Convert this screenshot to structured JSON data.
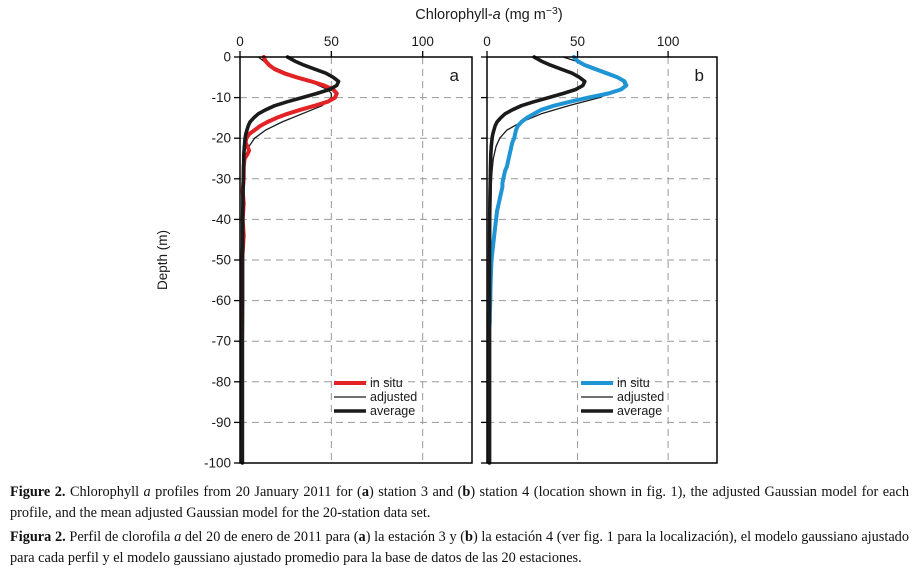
{
  "figure": {
    "title_segments": [
      {
        "t": "Chlorophyll-"
      },
      {
        "t": "a",
        "i": true
      },
      {
        "t": " (mg m"
      },
      {
        "t": "−3",
        "sup": true
      },
      {
        "t": ")"
      }
    ],
    "ylabel": "Depth (m)",
    "colors": {
      "in_situ_a": "#e32226",
      "in_situ_b": "#2095d5",
      "black": "#1a1a1a",
      "grid": "#999999"
    }
  },
  "chart_data": [
    {
      "type": "line",
      "panel_label": "a",
      "xlabel": "Chlorophyll-a (mg m-3)",
      "ylabel": "Depth (m)",
      "xlim": [
        0,
        127
      ],
      "ylim": [
        -100,
        0
      ],
      "xticks": [
        0,
        50,
        100
      ],
      "yticks": [
        0,
        -10,
        -20,
        -30,
        -40,
        -50,
        -60,
        -70,
        -80,
        -90,
        -100
      ],
      "grid": true,
      "legend_position": "lower-center",
      "legend": [
        "in situ",
        "adjusted",
        "average"
      ],
      "series": [
        {
          "name": "adjusted",
          "style": "thin",
          "color": "#1a1a1a",
          "width": 1.3,
          "depth": [
            0,
            -2,
            -4,
            -6,
            -8,
            -9,
            -10,
            -12,
            -14,
            -16,
            -18,
            -20,
            -22,
            -25,
            -28,
            -30,
            -40,
            -60,
            -80,
            -100
          ],
          "value": [
            10,
            16,
            26,
            38,
            48,
            50,
            50,
            45,
            34,
            23,
            14,
            8,
            5,
            3,
            2,
            1.8,
            1.5,
            1.5,
            1.5,
            1.5
          ]
        },
        {
          "name": "in situ",
          "style": "thick",
          "color": "#e32226",
          "width": 4,
          "depth": [
            0,
            -1,
            -2,
            -3,
            -4,
            -5,
            -6,
            -7,
            -8,
            -9,
            -10,
            -11,
            -12,
            -13,
            -14,
            -15,
            -16,
            -17,
            -18,
            -19,
            -20,
            -21,
            -22,
            -23,
            -24,
            -25,
            -27,
            -30,
            -33,
            -36,
            -40,
            -44,
            -48,
            -50,
            -52,
            -55,
            -58,
            -60,
            -63,
            -66,
            -70,
            -73,
            -76,
            -80,
            -83,
            -86,
            -90,
            -92,
            -94
          ],
          "value": [
            13,
            14,
            16,
            19,
            24,
            31,
            39,
            46,
            51,
            53,
            52,
            48,
            41,
            33,
            26,
            20,
            15,
            11,
            8,
            5,
            3.5,
            3,
            4,
            5,
            4,
            2.5,
            2,
            2,
            1.5,
            2,
            1.5,
            2,
            1.5,
            1,
            0.8,
            1,
            0.8,
            1,
            0.8,
            1,
            0.8,
            1,
            0.8,
            1,
            0.8,
            1,
            1,
            0.9,
            0.8
          ]
        },
        {
          "name": "average",
          "style": "thick",
          "color": "#1a1a1a",
          "width": 3.6,
          "depth": [
            0,
            -1,
            -2,
            -3,
            -4,
            -5,
            -6,
            -7,
            -8,
            -9,
            -10,
            -11,
            -12,
            -13,
            -14,
            -15,
            -16,
            -17,
            -18,
            -19,
            -20,
            -22,
            -24,
            -26,
            -28,
            -30,
            -35,
            -40,
            -50,
            -60,
            -70,
            -80,
            -90,
            -100
          ],
          "value": [
            26,
            30,
            35,
            41,
            47,
            51,
            54,
            53,
            49,
            42,
            34,
            26,
            19,
            14,
            10,
            7.5,
            5.5,
            4.5,
            3.8,
            3.2,
            2.8,
            2.4,
            2.1,
            2,
            1.9,
            1.8,
            1.6,
            1.5,
            1.4,
            1.4,
            1.3,
            1.3,
            1.3,
            1.3
          ]
        }
      ]
    },
    {
      "type": "line",
      "panel_label": "b",
      "xlabel": "Chlorophyll-a (mg m-3)",
      "ylabel": "Depth (m)",
      "xlim": [
        0,
        127
      ],
      "ylim": [
        -100,
        0
      ],
      "xticks": [
        0,
        50,
        100
      ],
      "yticks": [
        0,
        -10,
        -20,
        -30,
        -40,
        -50,
        -60,
        -70,
        -80,
        -90,
        -100
      ],
      "grid": true,
      "legend_position": "lower-center",
      "legend": [
        "in situ",
        "adjusted",
        "average"
      ],
      "series": [
        {
          "name": "adjusted",
          "style": "thin",
          "color": "#1a1a1a",
          "width": 1.3,
          "depth": [
            0,
            -2,
            -4,
            -6,
            -7,
            -8,
            -10,
            -12,
            -14,
            -16,
            -18,
            -20,
            -22,
            -25,
            -28,
            -30,
            -40,
            -60,
            -80,
            -100
          ],
          "value": [
            42,
            56,
            68,
            75,
            76,
            73,
            62,
            45,
            30,
            19,
            11,
            7,
            5,
            3.5,
            2.8,
            2.5,
            2,
            2,
            2,
            2
          ]
        },
        {
          "name": "in situ",
          "style": "thick",
          "color": "#2095d5",
          "width": 4,
          "depth": [
            0,
            -1,
            -2,
            -3,
            -4,
            -5,
            -6,
            -7,
            -8,
            -9,
            -10,
            -11,
            -12,
            -13,
            -14,
            -15,
            -16,
            -17,
            -18,
            -19,
            -20,
            -21,
            -22,
            -23,
            -24,
            -25,
            -26,
            -27,
            -28,
            -29,
            -30,
            -31,
            -32,
            -33,
            -34,
            -35,
            -36,
            -37,
            -38,
            -40,
            -42,
            -44,
            -46,
            -48,
            -50,
            -53,
            -56,
            -60,
            -63,
            -66
          ],
          "value": [
            48,
            50,
            54,
            60,
            66,
            72,
            76,
            77,
            74,
            67,
            56,
            46,
            37,
            30,
            26,
            22,
            19,
            17,
            16,
            15.5,
            15,
            14,
            13.5,
            13,
            12.5,
            12,
            11.5,
            11,
            10,
            9.5,
            9,
            8.5,
            8.5,
            8,
            7.5,
            7,
            6.5,
            6,
            5.5,
            5,
            4.5,
            4,
            3.5,
            3,
            2.5,
            2.2,
            2,
            1.8,
            1.6,
            1.5
          ]
        },
        {
          "name": "average",
          "style": "thick",
          "color": "#1a1a1a",
          "width": 3.6,
          "depth": [
            0,
            -1,
            -2,
            -3,
            -4,
            -5,
            -6,
            -7,
            -8,
            -9,
            -10,
            -11,
            -12,
            -13,
            -14,
            -15,
            -16,
            -17,
            -18,
            -19,
            -20,
            -22,
            -24,
            -26,
            -28,
            -30,
            -35,
            -40,
            -50,
            -60,
            -70,
            -80,
            -90,
            -100
          ],
          "value": [
            26,
            30,
            35,
            41,
            47,
            51,
            54,
            53,
            49,
            42,
            34,
            26,
            19,
            14,
            10,
            7.5,
            5.5,
            4.5,
            3.8,
            3.2,
            2.8,
            2.4,
            2.1,
            2,
            1.9,
            1.8,
            1.6,
            1.5,
            1.4,
            1.4,
            1.3,
            1.3,
            1.3,
            1.3
          ]
        }
      ]
    }
  ],
  "captions": {
    "english": [
      {
        "t": "Figure 2.",
        "b": true
      },
      {
        "t": " Chlorophyll "
      },
      {
        "t": "a",
        "i": true
      },
      {
        "t": " profiles from 20 January 2011 for ("
      },
      {
        "t": "a",
        "b": true
      },
      {
        "t": ") station 3 and ("
      },
      {
        "t": "b",
        "b": true
      },
      {
        "t": ") station 4 (location shown in fig. 1), the adjusted Gaussian model for each profile, and the mean adjusted Gaussian model for the 20-station data set."
      }
    ],
    "spanish": [
      {
        "t": "Figura 2.",
        "b": true
      },
      {
        "t": " Perfil de clorofila "
      },
      {
        "t": "a",
        "i": true
      },
      {
        "t": " del 20 de enero de 2011 para ("
      },
      {
        "t": "a",
        "b": true
      },
      {
        "t": ") la estación 3 y ("
      },
      {
        "t": "b",
        "b": true
      },
      {
        "t": ") la estación 4 (ver fig. 1 para la localización), el modelo gaussiano ajustado para cada perfil y el modelo gaussiano ajustado promedio para la base de datos de las 20 estaciones."
      }
    ]
  }
}
